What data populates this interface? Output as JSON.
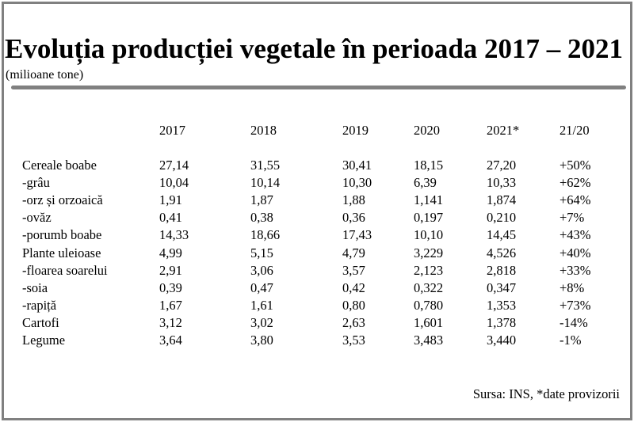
{
  "title": "Evoluția producției vegetale în perioada 2017 – 2021",
  "subtitle": "(milioane tone)",
  "table": {
    "headers": [
      "",
      "2017",
      "2018",
      "2019",
      "2020",
      "2021*",
      "21/20"
    ],
    "rows": [
      [
        "Cereale boabe",
        "27,14",
        "31,55",
        "30,41",
        "18,15",
        "27,20",
        "+50%"
      ],
      [
        "-grâu",
        "10,04",
        "10,14",
        "10,30",
        "6,39",
        "10,33",
        "+62%"
      ],
      [
        "-orz și orzoaică",
        "1,91",
        "1,87",
        "1,88",
        "1,141",
        "1,874",
        "+64%"
      ],
      [
        "-ovăz",
        "0,41",
        "0,38",
        "0,36",
        "0,197",
        "0,210",
        "+7%"
      ],
      [
        "-porumb boabe",
        "14,33",
        "18,66",
        "17,43",
        "10,10",
        "14,45",
        "+43%"
      ],
      [
        "Plante uleioase",
        "4,99",
        "5,15",
        "4,79",
        "3,229",
        "4,526",
        "+40%"
      ],
      [
        "-floarea soarelui",
        "2,91",
        "3,06",
        "3,57",
        "2,123",
        "2,818",
        "+33%"
      ],
      [
        "-soia",
        "0,39",
        "0,47",
        "0,42",
        "0,322",
        "0,347",
        "+8%"
      ],
      [
        "-rapiță",
        "1,67",
        "1,61",
        "0,80",
        "0,780",
        "1,353",
        "+73%"
      ],
      [
        "Cartofi",
        "3,12",
        "3,02",
        "2,63",
        "1,601",
        "1,378",
        "-14%"
      ],
      [
        "Legume",
        "3,64",
        "3,80",
        "3,53",
        "3,483",
        "3,440",
        "-1%"
      ]
    ]
  },
  "source": "Sursa: INS, *date provizorii"
}
